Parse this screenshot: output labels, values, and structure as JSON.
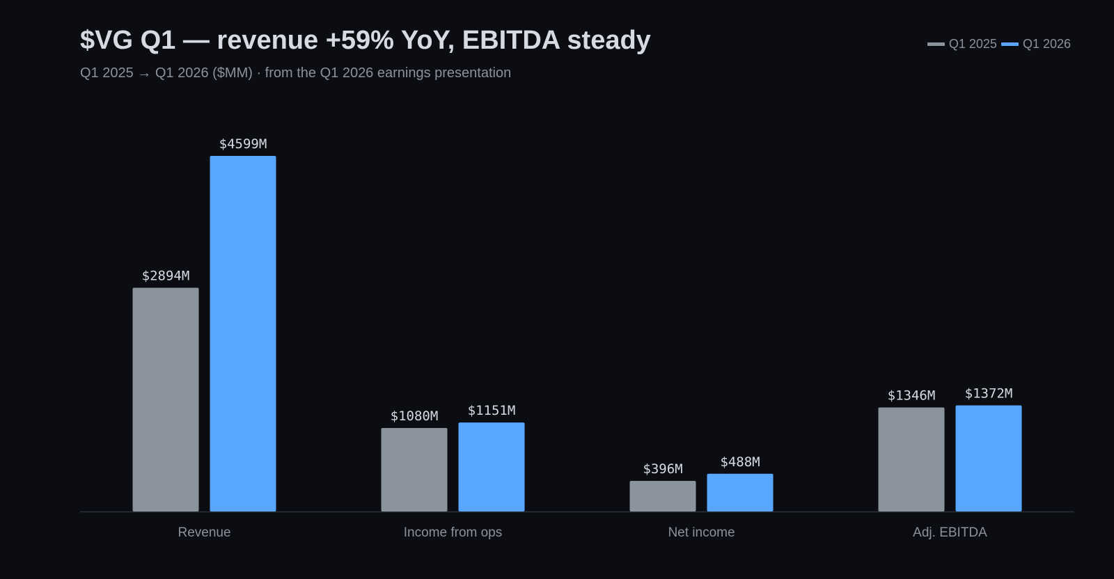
{
  "title": "$VG Q1 — revenue +59% YoY, EBITDA steady",
  "subtitle": "Q1 2025 → Q1 2026 ($MM) · from the Q1 2026 earnings presentation",
  "legend": {
    "items": [
      {
        "label": "Q1 2025",
        "color": "#8b939c"
      },
      {
        "label": "Q1 2026",
        "color": "#58a6ff"
      }
    ]
  },
  "chart_data": {
    "type": "bar",
    "title": "$VG Q1 — revenue +59% YoY, EBITDA steady",
    "subtitle": "Q1 2025 → Q1 2026 ($MM) · from the Q1 2026 earnings presentation",
    "categories": [
      "Revenue",
      "Income from ops",
      "Net income",
      "Adj. EBITDA"
    ],
    "series": [
      {
        "name": "Q1 2025",
        "color": "#8b939c",
        "values": [
          2894,
          1080,
          396,
          1346
        ],
        "labels": [
          "$2894M",
          "$1080M",
          "$396M",
          "$1346M"
        ]
      },
      {
        "name": "Q1 2026",
        "color": "#58a6ff",
        "values": [
          4599,
          1151,
          488,
          1372
        ],
        "labels": [
          "$4599M",
          "$1151M",
          "$488M",
          "$1372M"
        ]
      }
    ],
    "xlabel": "",
    "ylabel": "",
    "ylim": [
      0,
      4599
    ],
    "grid": false,
    "legend_position": "top-right"
  }
}
